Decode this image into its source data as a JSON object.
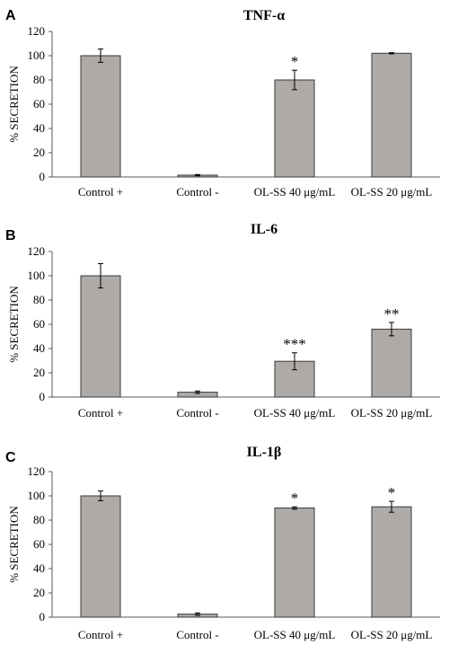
{
  "chart_data": [
    {
      "type": "bar",
      "panel": "A",
      "title": "TNF-α",
      "ylabel": "% SECRETION",
      "xlabel": "",
      "ylim": [
        0,
        120
      ],
      "yticks": [
        0,
        20,
        40,
        60,
        80,
        100,
        120
      ],
      "categories": [
        "Control +",
        "Control -",
        "OL-SS 40 μg/mL",
        "OL-SS 20 μg/mL"
      ],
      "values": [
        100,
        1.5,
        80,
        102
      ],
      "errors": [
        5.5,
        0.5,
        8,
        0.5
      ],
      "significance": [
        "",
        "",
        "*",
        ""
      ],
      "bar_color": "#adaaa7"
    },
    {
      "type": "bar",
      "panel": "B",
      "title": "IL-6",
      "ylabel": "% SECRETION",
      "xlabel": "",
      "ylim": [
        0,
        120
      ],
      "yticks": [
        0,
        20,
        40,
        60,
        80,
        100,
        120
      ],
      "categories": [
        "Control +",
        "Control -",
        "OL-SS 40 μg/mL",
        "OL-SS 20 μg/mL"
      ],
      "values": [
        100,
        4,
        29.5,
        56
      ],
      "errors": [
        10,
        1,
        7,
        5.5
      ],
      "significance": [
        "",
        "",
        "***",
        "**"
      ],
      "bar_color": "#adaaa7"
    },
    {
      "type": "bar",
      "panel": "C",
      "title": "IL-1β",
      "ylabel": "% SECRETION",
      "xlabel": "",
      "ylim": [
        0,
        120
      ],
      "yticks": [
        0,
        20,
        40,
        60,
        80,
        100,
        120
      ],
      "categories": [
        "Control +",
        "Control -",
        "OL-SS 40 μg/mL",
        "OL-SS 20 μg/mL"
      ],
      "values": [
        100,
        2.5,
        90,
        91
      ],
      "errors": [
        4,
        1,
        1,
        4.5
      ],
      "significance": [
        "",
        "",
        "*",
        "*"
      ],
      "bar_color": "#adaaa7"
    }
  ]
}
